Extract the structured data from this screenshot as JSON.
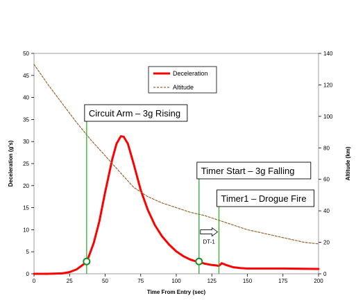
{
  "chart_data": {
    "type": "line",
    "xlabel": "Time From Entry (sec)",
    "ylabel": "Deceleration (g's)",
    "y2label": "Altitude (km)",
    "xlim": [
      0,
      200
    ],
    "ylim": [
      0,
      50
    ],
    "y2lim": [
      0,
      140
    ],
    "x_ticks": [
      0,
      25,
      50,
      75,
      100,
      125,
      150,
      175,
      200
    ],
    "y_ticks": [
      0,
      5,
      10,
      15,
      20,
      25,
      30,
      35,
      40,
      45,
      50
    ],
    "y2_ticks": [
      0,
      20,
      40,
      60,
      80,
      100,
      120,
      140
    ],
    "grid": false,
    "legend_position": "top-center",
    "series": [
      {
        "name": "Deceleration",
        "axis": "left",
        "color": "#ff0000",
        "style": "solid",
        "points": [
          [
            0,
            0
          ],
          [
            10,
            0
          ],
          [
            20,
            0.1
          ],
          [
            25,
            0.4
          ],
          [
            30,
            1
          ],
          [
            35,
            2.2
          ],
          [
            38,
            3.5
          ],
          [
            42,
            7
          ],
          [
            46,
            12
          ],
          [
            50,
            18.5
          ],
          [
            55,
            26
          ],
          [
            58,
            29.5
          ],
          [
            61,
            31.2
          ],
          [
            63,
            31.1
          ],
          [
            66,
            29.5
          ],
          [
            70,
            25
          ],
          [
            75,
            19
          ],
          [
            80,
            14.5
          ],
          [
            85,
            11
          ],
          [
            90,
            8.5
          ],
          [
            95,
            6.6
          ],
          [
            100,
            5.1
          ],
          [
            105,
            4
          ],
          [
            110,
            3.2
          ],
          [
            115,
            2.7
          ],
          [
            118,
            2.5
          ],
          [
            120,
            2.3
          ],
          [
            125,
            2
          ],
          [
            128,
            1.9
          ],
          [
            130,
            1.8
          ],
          [
            132,
            2.4
          ],
          [
            135,
            2
          ],
          [
            140,
            1.5
          ],
          [
            145,
            1.3
          ],
          [
            150,
            1.2
          ],
          [
            175,
            1.2
          ],
          [
            200,
            1.1
          ]
        ]
      },
      {
        "name": "Altitude",
        "axis": "right",
        "color": "#996633",
        "style": "dashed",
        "points": [
          [
            0,
            133
          ],
          [
            10,
            120
          ],
          [
            20,
            108
          ],
          [
            30,
            96
          ],
          [
            40,
            85
          ],
          [
            50,
            75
          ],
          [
            60,
            65
          ],
          [
            70,
            55
          ],
          [
            80,
            49
          ],
          [
            90,
            45
          ],
          [
            100,
            42
          ],
          [
            110,
            39
          ],
          [
            120,
            37
          ],
          [
            130,
            34
          ],
          [
            140,
            31
          ],
          [
            150,
            28
          ],
          [
            160,
            26
          ],
          [
            170,
            24
          ],
          [
            180,
            22
          ],
          [
            190,
            20
          ],
          [
            200,
            19
          ]
        ]
      }
    ],
    "events": [
      {
        "label": "Circuit Arm – 3g Rising",
        "x": 37,
        "marker_y": 2.8
      },
      {
        "label": "Timer Start – 3g Falling",
        "x": 116,
        "marker_y": 2.8
      },
      {
        "label": "Timer1  – Drogue Fire",
        "x": 130
      }
    ],
    "annotations": [
      {
        "label": "DT-1",
        "x_from": 116,
        "x_to": 130,
        "y": 9.5
      }
    ],
    "colors": {
      "event_line": "#33aa33",
      "marker_stroke": "#1a8f2a"
    }
  }
}
